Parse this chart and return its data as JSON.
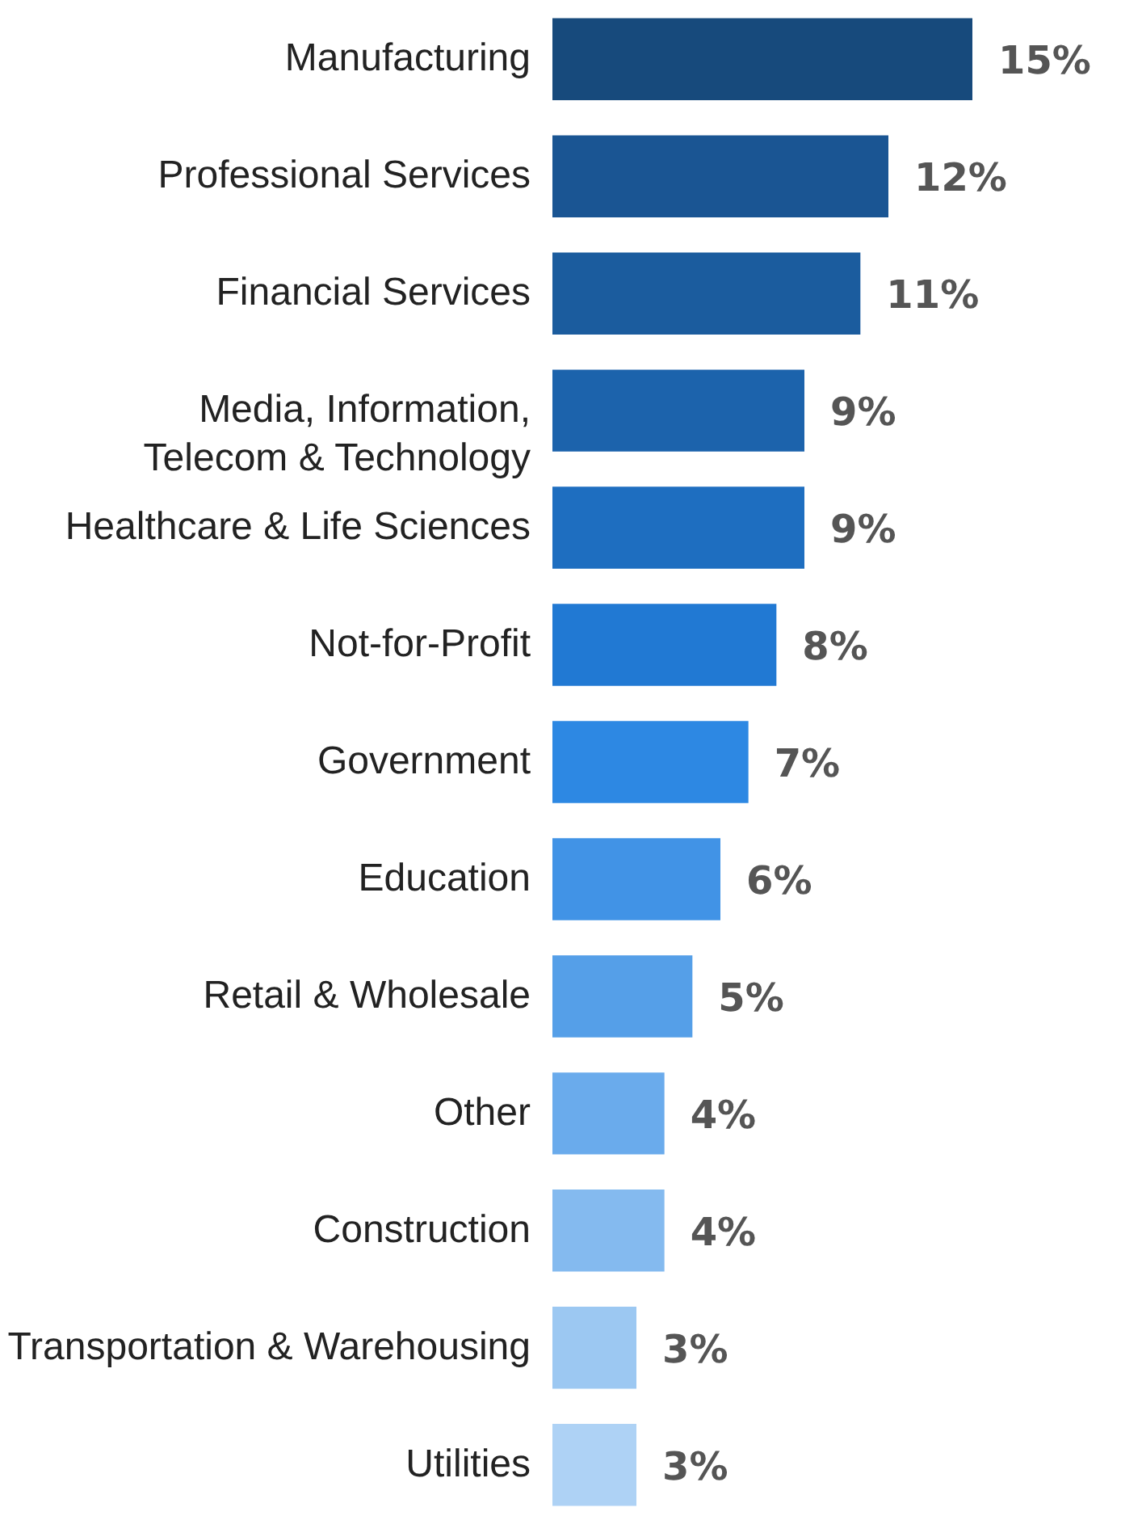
{
  "chart_data": {
    "type": "bar",
    "orientation": "horizontal",
    "categories": [
      "Manufacturing",
      "Professional Services",
      "Financial Services",
      "Media, Information,\nTelecom & Technology",
      "Healthcare & Life Sciences",
      "Not-for-Profit",
      "Government",
      "Education",
      "Retail & Wholesale",
      "Other",
      "Construction",
      "Transportation & Warehousing",
      "Utilities"
    ],
    "values": [
      15,
      12,
      11,
      9,
      9,
      8,
      7,
      6,
      5,
      4,
      4,
      3,
      3
    ],
    "value_labels": [
      "15%",
      "12%",
      "11%",
      "9%",
      "9%",
      "8%",
      "7%",
      "6%",
      "5%",
      "4%",
      "4%",
      "3%",
      "3%"
    ],
    "colors": [
      "#174a7c",
      "#1a5593",
      "#1b5c9e",
      "#1c63ac",
      "#1e6ec0",
      "#2179d3",
      "#2d88e3",
      "#4193e6",
      "#559fe8",
      "#6aabec",
      "#84baef",
      "#9cc8f2",
      "#aed2f5"
    ]
  }
}
